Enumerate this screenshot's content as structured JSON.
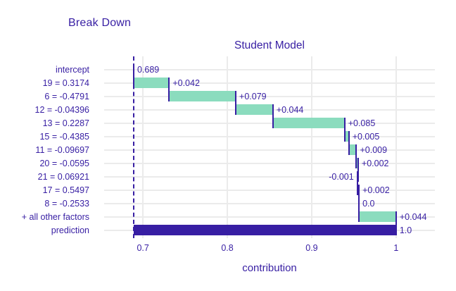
{
  "header": {
    "title": "Break Down"
  },
  "axis": {
    "subtitle": "Student Model",
    "xlabel": "contribution"
  },
  "colors": {
    "accent_text": "#371ea3",
    "dark_bar": "#371ea3",
    "positive_bar": "#8bdcbe",
    "negative_bar": "#f05a71",
    "gridline": "#ebebeb",
    "background": "#ffffff"
  },
  "chart_data": {
    "type": "bar",
    "subtype": "horizontal-waterfall-breakdown",
    "title": "Break Down",
    "subtitle": "Student Model",
    "xlabel": "contribution",
    "ylabel": "",
    "xlim": [
      0.654,
      1.046
    ],
    "x_ticks": [
      {
        "label": "0.7",
        "value": 0.7
      },
      {
        "label": "0.8",
        "value": 0.8
      },
      {
        "label": "0.9",
        "value": 0.9
      },
      {
        "label": "1",
        "value": 1.0
      }
    ],
    "baseline_value": 0.689,
    "grid": true,
    "legend": false,
    "rows": [
      {
        "label": "intercept",
        "value_label": "0.689",
        "value": 0.689,
        "start": 0.689,
        "end": 0.689,
        "kind": "intercept",
        "label_side": "right"
      },
      {
        "label": "19 = 0.3174",
        "value_label": "+0.042",
        "value": 0.042,
        "start": 0.689,
        "end": 0.731,
        "kind": "positive",
        "label_side": "right"
      },
      {
        "label": "6 = -0.4791",
        "value_label": "+0.079",
        "value": 0.079,
        "start": 0.731,
        "end": 0.81,
        "kind": "positive",
        "label_side": "right"
      },
      {
        "label": "12 = -0.04396",
        "value_label": "+0.044",
        "value": 0.044,
        "start": 0.81,
        "end": 0.854,
        "kind": "positive",
        "label_side": "right"
      },
      {
        "label": "13 = 0.2287",
        "value_label": "+0.085",
        "value": 0.085,
        "start": 0.854,
        "end": 0.939,
        "kind": "positive",
        "label_side": "right"
      },
      {
        "label": "15 = -0.4385",
        "value_label": "+0.005",
        "value": 0.005,
        "start": 0.939,
        "end": 0.944,
        "kind": "positive",
        "label_side": "right"
      },
      {
        "label": "11 = -0.09697",
        "value_label": "+0.009",
        "value": 0.009,
        "start": 0.944,
        "end": 0.953,
        "kind": "positive",
        "label_side": "right"
      },
      {
        "label": "20 = -0.0595",
        "value_label": "+0.002",
        "value": 0.002,
        "start": 0.953,
        "end": 0.955,
        "kind": "positive",
        "label_side": "right"
      },
      {
        "label": "21 = 0.06921",
        "value_label": "-0.001",
        "value": -0.001,
        "start": 0.955,
        "end": 0.954,
        "kind": "negative",
        "label_side": "left"
      },
      {
        "label": "17 = 0.5497",
        "value_label": "+0.002",
        "value": 0.002,
        "start": 0.954,
        "end": 0.956,
        "kind": "positive",
        "label_side": "right"
      },
      {
        "label": "8 = -0.2533",
        "value_label": "0.0",
        "value": 0.0,
        "start": 0.956,
        "end": 0.956,
        "kind": "zero",
        "label_side": "right"
      },
      {
        "label": "+ all other factors",
        "value_label": "+0.044",
        "value": 0.044,
        "start": 0.956,
        "end": 1.0,
        "kind": "positive",
        "label_side": "right"
      },
      {
        "label": "prediction",
        "value_label": "1.0",
        "value": 1.0,
        "start": 0.689,
        "end": 1.0,
        "kind": "prediction",
        "label_side": "right"
      }
    ]
  }
}
